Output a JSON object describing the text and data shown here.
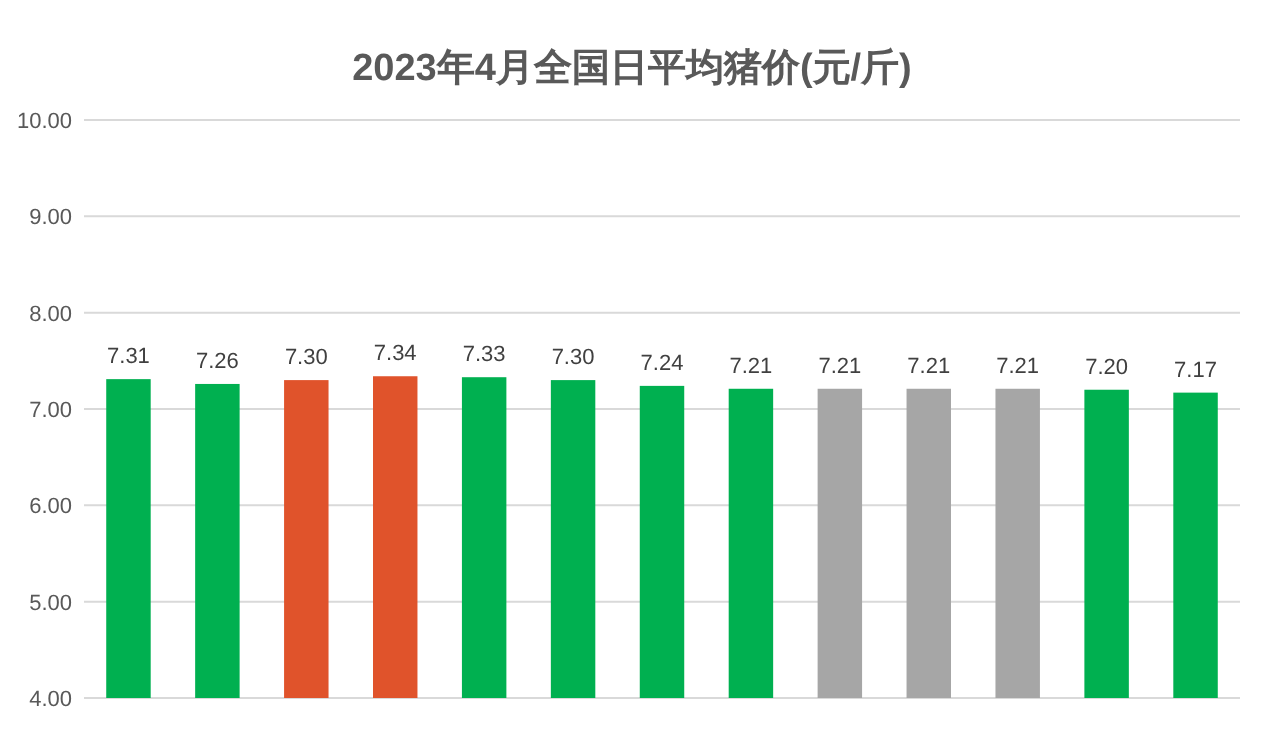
{
  "chart_data": {
    "type": "bar",
    "title": "2023年4月全国日平均猪价(元/斤)",
    "categories": [
      null,
      null,
      null,
      null,
      null,
      null,
      null,
      null,
      null,
      null,
      null,
      null,
      null
    ],
    "values": [
      7.31,
      7.26,
      7.3,
      7.34,
      7.33,
      7.3,
      7.24,
      7.21,
      7.21,
      7.21,
      7.21,
      7.2,
      7.17
    ],
    "value_labels": [
      "7.31",
      "7.26",
      "7.30",
      "7.34",
      "7.33",
      "7.30",
      "7.24",
      "7.21",
      "7.21",
      "7.21",
      "7.21",
      "7.20",
      "7.17"
    ],
    "colors": [
      "#00b050",
      "#00b050",
      "#e0532b",
      "#e0532b",
      "#00b050",
      "#00b050",
      "#00b050",
      "#00b050",
      "#a6a6a6",
      "#a6a6a6",
      "#a6a6a6",
      "#00b050",
      "#00b050"
    ],
    "ylim": [
      4,
      10
    ],
    "yticks": [
      {
        "value": 4,
        "label": "4.00"
      },
      {
        "value": 5,
        "label": "5.00"
      },
      {
        "value": 6,
        "label": "6.00"
      },
      {
        "value": 7,
        "label": "7.00"
      },
      {
        "value": 8,
        "label": "8.00"
      },
      {
        "value": 9,
        "label": "9.00"
      },
      {
        "value": 10,
        "label": "10.00"
      }
    ],
    "grid": "y"
  }
}
